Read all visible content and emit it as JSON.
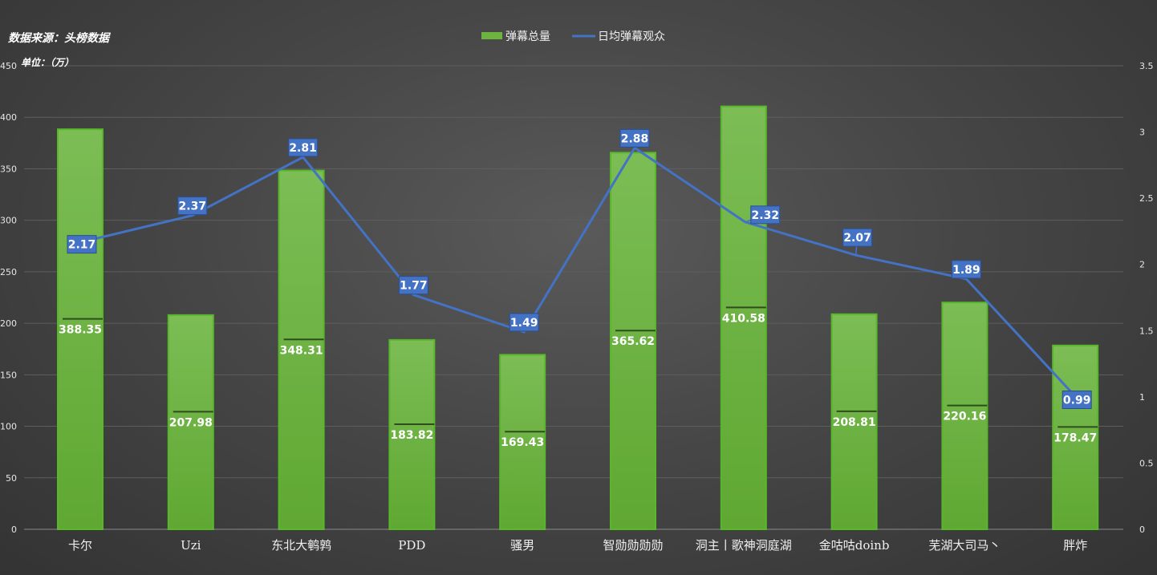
{
  "header": {
    "source": "数据来源：头榜数据",
    "unit": "单位：（万）"
  },
  "chart_data": {
    "type": "bar",
    "categories": [
      "卡尔",
      "Uzi",
      "东北大鹌鹑",
      "PDD",
      "骚男",
      "智勋勋勋勋",
      "洞主丨歌神洞庭湖",
      "金咕咕doinb",
      "芜湖大司马丶",
      "胖炸"
    ],
    "series": [
      {
        "name": "弹幕总量",
        "type": "bar",
        "axis": "left",
        "color": "#6db33f",
        "values": [
          388.35,
          207.98,
          348.31,
          183.82,
          169.43,
          365.62,
          410.58,
          208.81,
          220.16,
          178.47
        ],
        "labels": [
          "388.35",
          "207.98",
          "348.31",
          "183.82",
          "169.43",
          "365.62",
          "410.58",
          "208.81",
          "220.16",
          "178.47"
        ]
      },
      {
        "name": "日均弹幕观众",
        "type": "line",
        "axis": "right",
        "color": "#4472c4",
        "values": [
          2.17,
          2.37,
          2.81,
          1.77,
          1.49,
          2.88,
          2.32,
          2.07,
          1.89,
          0.99
        ],
        "labels": [
          "2.17",
          "2.37",
          "2.81",
          "1.77",
          "1.49",
          "2.88",
          "2.32",
          "2.07",
          "1.89",
          "0.99"
        ]
      }
    ],
    "left_axis": {
      "min": 0,
      "max": 450,
      "ticks": [
        "0",
        "50",
        "100",
        "150",
        "200",
        "250",
        "300",
        "350",
        "400",
        "450"
      ]
    },
    "right_axis": {
      "min": 0,
      "max": 3.5,
      "ticks": [
        "0",
        "0.5",
        "1",
        "1.5",
        "2",
        "2.5",
        "3",
        "3.5"
      ]
    },
    "grid": true,
    "legend": "top-center"
  }
}
